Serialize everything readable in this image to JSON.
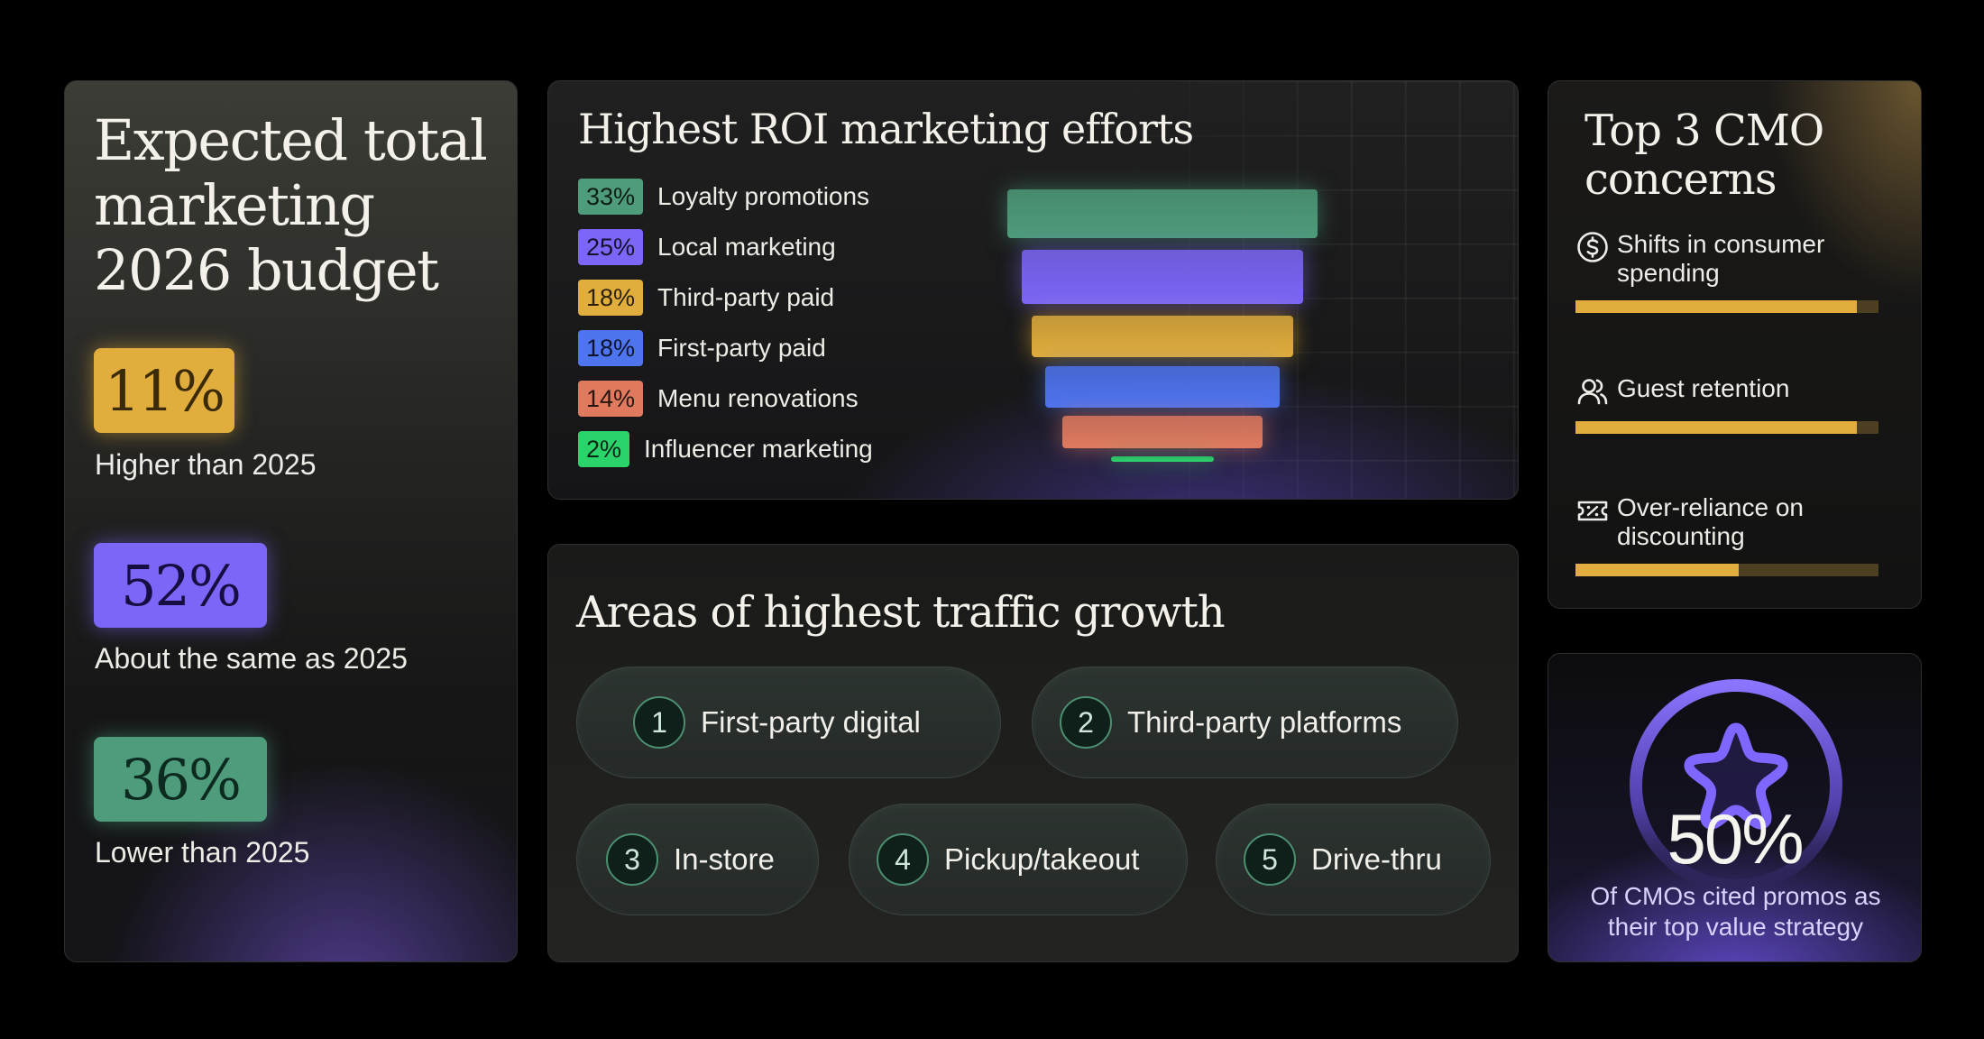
{
  "budget": {
    "title": "Expected total marketing 2026 budget",
    "stats": [
      {
        "value": "11%",
        "label": "Higher than 2025"
      },
      {
        "value": "52%",
        "label": "About the same as 2025"
      },
      {
        "value": "36%",
        "label": "Lower than 2025"
      }
    ]
  },
  "roi": {
    "title": "Highest ROI marketing efforts",
    "items": [
      {
        "percent": "33%",
        "label": "Loyalty promotions",
        "value": 33,
        "color": "#4e9c7b"
      },
      {
        "percent": "25%",
        "label": "Local marketing",
        "value": 25,
        "color": "#7b66f7"
      },
      {
        "percent": "18%",
        "label": "Third-party paid",
        "value": 18,
        "color": "#e1ad3c"
      },
      {
        "percent": "18%",
        "label": "First-party paid",
        "value": 18,
        "color": "#4e74f0"
      },
      {
        "percent": "14%",
        "label": "Menu renovations",
        "value": 14,
        "color": "#e07a5f"
      },
      {
        "percent": "2%",
        "label": "Influencer marketing",
        "value": 2,
        "color": "#2bd36b"
      }
    ]
  },
  "traffic": {
    "title": "Areas of highest traffic growth",
    "items": [
      {
        "number": "1",
        "label": "First-party digital"
      },
      {
        "number": "2",
        "label": "Third-party platforms"
      },
      {
        "number": "3",
        "label": "In-store"
      },
      {
        "number": "4",
        "label": "Pickup/takeout"
      },
      {
        "number": "5",
        "label": "Drive-thru"
      }
    ]
  },
  "concerns": {
    "title": "Top 3 CMO concerns",
    "items": [
      {
        "label": "Shifts in consumer spending",
        "icon": "dollar-icon",
        "level": 0.93
      },
      {
        "label": "Guest retention",
        "icon": "users-icon",
        "level": 0.93
      },
      {
        "label": "Over-reliance on discounting",
        "icon": "ticket-icon",
        "level": 0.54
      }
    ]
  },
  "promo": {
    "value": "50%",
    "caption": "Of CMOs cited promos as their top value strategy",
    "icon": "star-icon"
  }
}
